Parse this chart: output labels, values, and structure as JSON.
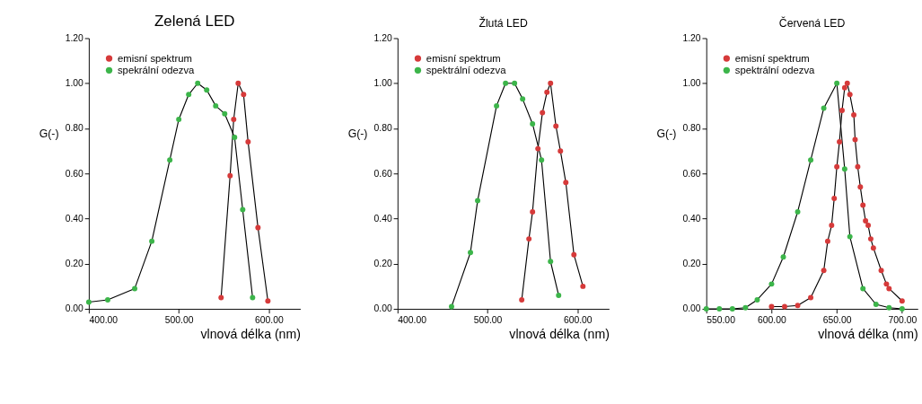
{
  "chart_data": [
    {
      "type": "line",
      "title": "Zelená LED",
      "xlabel": "vlnová délka (nm)",
      "ylabel": "G(-)",
      "legend": "top left",
      "marker": "circle",
      "line_style": "solid",
      "grid": false,
      "xlim": [
        400,
        635
      ],
      "xticks": [
        {
          "value": 400,
          "label": "400.00"
        },
        {
          "value": 500,
          "label": "500.00"
        },
        {
          "value": 600,
          "label": "600.00"
        }
      ],
      "ylim": [
        0,
        1.2
      ],
      "yticks": [
        {
          "value": 0,
          "label": "0.00"
        },
        {
          "value": 0.2,
          "label": "0.20"
        },
        {
          "value": 0.4,
          "label": "0.40"
        },
        {
          "value": 0.6,
          "label": "0.60"
        },
        {
          "value": 0.8,
          "label": "0.80"
        },
        {
          "value": 1.0,
          "label": "1.00"
        },
        {
          "value": 1.2,
          "label": "1.20"
        }
      ],
      "series": [
        {
          "name": "emisní spektrum",
          "color": "#d63a3a",
          "x": [
            547,
            557,
            561,
            566,
            572,
            577,
            588,
            599
          ],
          "values": [
            0.05,
            0.59,
            0.84,
            1.0,
            0.95,
            0.74,
            0.36,
            0.035
          ]
        },
        {
          "name": "spekrální odezva",
          "color": "#3cb54a",
          "x": [
            400,
            421,
            451,
            470,
            490,
            500,
            511,
            521,
            531,
            541,
            551,
            562,
            571,
            582
          ],
          "values": [
            0.03,
            0.04,
            0.09,
            0.3,
            0.66,
            0.84,
            0.95,
            1.0,
            0.97,
            0.9,
            0.865,
            0.76,
            0.44,
            0.05
          ]
        }
      ]
    },
    {
      "type": "line",
      "title": "Žlutá LED",
      "xlabel": "vlnová délka (nm)",
      "ylabel": "G(-)",
      "legend": "top left",
      "marker": "circle",
      "line_style": "solid",
      "grid": false,
      "xlim": [
        400,
        635
      ],
      "xticks": [
        {
          "value": 400,
          "label": "400.00"
        },
        {
          "value": 500,
          "label": "500.00"
        },
        {
          "value": 600,
          "label": "600.00"
        }
      ],
      "ylim": [
        0,
        1.2
      ],
      "yticks": [
        {
          "value": 0,
          "label": "0.00"
        },
        {
          "value": 0.2,
          "label": "0.20"
        },
        {
          "value": 0.4,
          "label": "0.40"
        },
        {
          "value": 0.6,
          "label": "0.60"
        },
        {
          "value": 0.8,
          "label": "0.80"
        },
        {
          "value": 1.0,
          "label": "1.00"
        },
        {
          "value": 1.2,
          "label": "1.20"
        }
      ],
      "series": [
        {
          "name": "emisní spektrum",
          "color": "#d63a3a",
          "x": [
            538,
            546,
            550,
            556,
            561,
            566,
            570,
            576,
            581,
            587,
            596,
            606
          ],
          "values": [
            0.04,
            0.31,
            0.43,
            0.71,
            0.87,
            0.96,
            1.0,
            0.81,
            0.7,
            0.56,
            0.24,
            0.1
          ]
        },
        {
          "name": "spektrální odezva",
          "color": "#3cb54a",
          "x": [
            460,
            481,
            489,
            510,
            520,
            530,
            539,
            550,
            560,
            570,
            579
          ],
          "values": [
            0.01,
            0.25,
            0.48,
            0.9,
            1.0,
            1.0,
            0.93,
            0.82,
            0.66,
            0.21,
            0.06
          ]
        }
      ]
    },
    {
      "type": "line",
      "title": "Červená LED",
      "xlabel": "vlnová délka (nm)",
      "ylabel": "G(-)",
      "legend": "top left",
      "marker": "circle",
      "line_style": "solid",
      "grid": false,
      "xlim": [
        550,
        712
      ],
      "xticks": [
        {
          "value": 550,
          "label": "550.00"
        },
        {
          "value": 600,
          "label": "600.00"
        },
        {
          "value": 650,
          "label": "650.00"
        },
        {
          "value": 700,
          "label": "700.00"
        }
      ],
      "ylim": [
        0,
        1.2
      ],
      "yticks": [
        {
          "value": 0,
          "label": "0.00"
        },
        {
          "value": 0.2,
          "label": "0.20"
        },
        {
          "value": 0.4,
          "label": "0.40"
        },
        {
          "value": 0.6,
          "label": "0.60"
        },
        {
          "value": 0.8,
          "label": "0.80"
        },
        {
          "value": 1.0,
          "label": "1.00"
        },
        {
          "value": 1.2,
          "label": "1.20"
        }
      ],
      "series": [
        {
          "name": "emisní spektrum",
          "color": "#d63a3a",
          "x": [
            600,
            610,
            620,
            630,
            640,
            643,
            646,
            648,
            650,
            652,
            654,
            656,
            658,
            660,
            663,
            664,
            666,
            668,
            670,
            672,
            674,
            676,
            678,
            684,
            688,
            690,
            700
          ],
          "values": [
            0.01,
            0.01,
            0.015,
            0.05,
            0.17,
            0.3,
            0.37,
            0.49,
            0.63,
            0.74,
            0.88,
            0.98,
            1.0,
            0.95,
            0.86,
            0.75,
            0.63,
            0.54,
            0.46,
            0.39,
            0.37,
            0.31,
            0.27,
            0.17,
            0.11,
            0.09,
            0.035
          ]
        },
        {
          "name": "spektrální odezva",
          "color": "#3cb54a",
          "x": [
            550,
            560,
            570,
            580,
            589,
            600,
            609,
            620,
            630,
            640,
            650,
            656,
            660,
            670,
            680,
            690,
            700
          ],
          "values": [
            0,
            0,
            0,
            0.005,
            0.04,
            0.11,
            0.23,
            0.43,
            0.66,
            0.89,
            1.0,
            0.62,
            0.32,
            0.09,
            0.02,
            0.005,
            0
          ]
        }
      ]
    }
  ]
}
